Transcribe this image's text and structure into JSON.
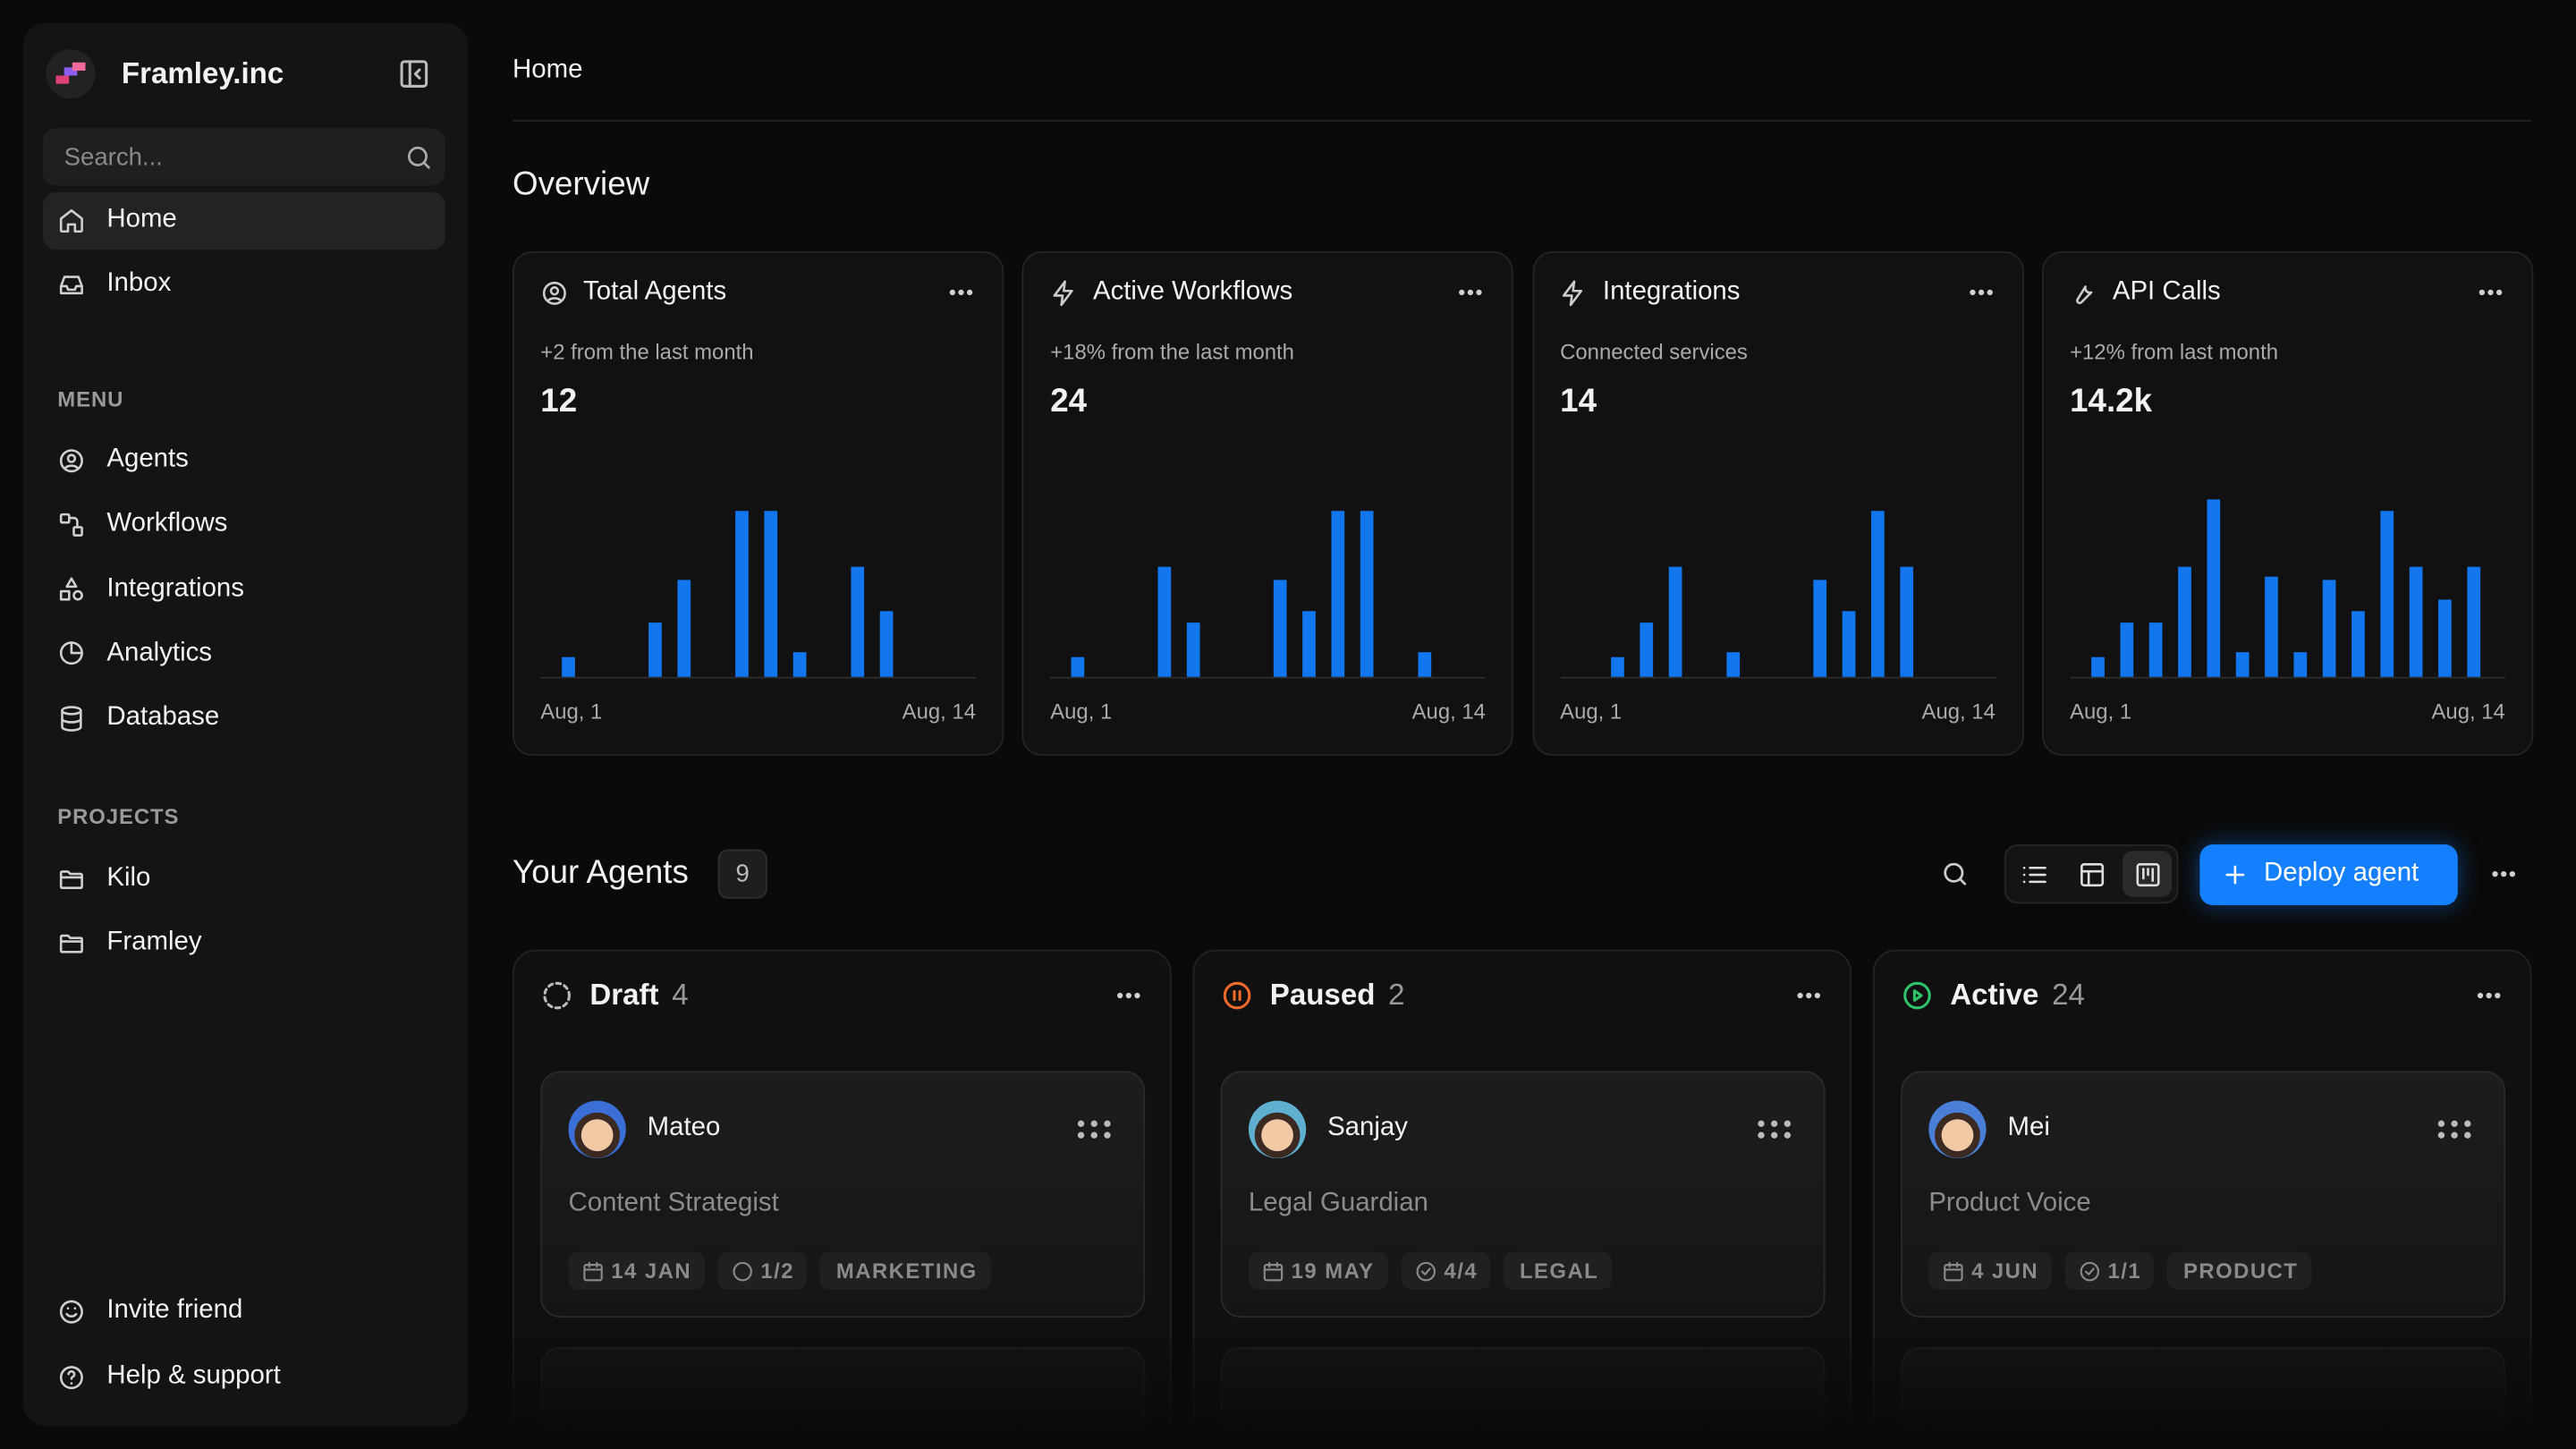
{
  "sidebar": {
    "brand": "Framley.inc",
    "search_placeholder": "Search...",
    "nav": [
      "Home",
      "Inbox"
    ],
    "menu_heading": "MENU",
    "menu": [
      "Agents",
      "Workflows",
      "Integrations",
      "Analytics",
      "Database"
    ],
    "projects_heading": "PROJECTS",
    "projects": [
      "Kilo",
      "Framley"
    ],
    "footer": [
      "Invite friend",
      "Help & support"
    ]
  },
  "header": {
    "breadcrumb": "Home"
  },
  "overview": {
    "title": "Overview",
    "cards": [
      {
        "title": "Total Agents",
        "subtitle": "+2 from the last month",
        "value": "12",
        "start_label": "Aug, 1",
        "end_label": "Aug, 14",
        "bars": [
          12,
          0,
          0,
          33,
          59,
          0,
          101,
          101,
          15,
          0,
          67,
          40,
          0,
          0,
          0
        ]
      },
      {
        "title": "Active Workflows",
        "subtitle": "+18% from the last month",
        "value": "24",
        "start_label": "Aug, 1",
        "end_label": "Aug, 14",
        "bars": [
          12,
          0,
          0,
          67,
          33,
          0,
          0,
          59,
          40,
          101,
          101,
          0,
          15,
          0,
          0
        ]
      },
      {
        "title": "Integrations",
        "subtitle": "Connected services",
        "value": "14",
        "start_label": "Aug, 1",
        "end_label": "Aug, 14",
        "bars": [
          0,
          12,
          33,
          67,
          0,
          15,
          0,
          0,
          59,
          40,
          101,
          67,
          0,
          0,
          0
        ]
      },
      {
        "title": "API Calls",
        "subtitle": "+12% from last month",
        "value": "14.2k",
        "start_label": "Aug, 1",
        "end_label": "Aug, 14",
        "bars": [
          12,
          33,
          33,
          67,
          108,
          15,
          61,
          15,
          59,
          40,
          101,
          67,
          47,
          67,
          0
        ]
      }
    ]
  },
  "agents": {
    "title": "Your Agents",
    "count": "9",
    "deploy_button": "Deploy agent",
    "columns": [
      {
        "status": "Draft",
        "count": "4",
        "cards": [
          {
            "name": "Mateo",
            "role": "Content Strategist",
            "date": "14 JAN",
            "progress": "1/2",
            "tag": "MARKETING"
          }
        ]
      },
      {
        "status": "Paused",
        "count": "2",
        "cards": [
          {
            "name": "Sanjay",
            "role": "Legal Guardian",
            "date": "19 MAY",
            "progress": "4/4",
            "tag": "LEGAL"
          }
        ]
      },
      {
        "status": "Active",
        "count": "24",
        "cards": [
          {
            "name": "Mei",
            "role": "Product Voice",
            "date": "4 JUN",
            "progress": "1/1",
            "tag": "PRODUCT"
          }
        ]
      }
    ]
  }
}
